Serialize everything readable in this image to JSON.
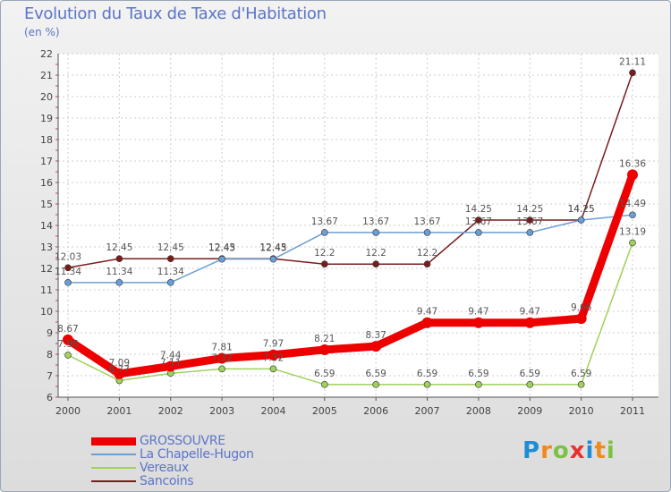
{
  "header": {
    "title": "Evolution du Taux de Taxe d'Habitation",
    "subtitle": "(en %)"
  },
  "logo": {
    "letters": [
      "P",
      "r",
      "o",
      "x",
      "i",
      "t",
      "i"
    ],
    "colors": [
      "#1f8dd6",
      "#f08a1c",
      "#7cc242",
      "#e8312f",
      "#1f8dd6",
      "#f08a1c",
      "#7cc242"
    ]
  },
  "chart_data": {
    "type": "line",
    "title": "Evolution du Taux de Taxe d'Habitation",
    "subtitle": "(en %)",
    "x": [
      "2000",
      "2001",
      "2002",
      "2003",
      "2004",
      "2005",
      "2006",
      "2007",
      "2008",
      "2009",
      "2010",
      "2011"
    ],
    "ylim": [
      6,
      22
    ],
    "yticks": [
      6,
      7,
      8,
      9,
      10,
      11,
      12,
      13,
      14,
      15,
      16,
      17,
      18,
      19,
      20,
      21,
      22
    ],
    "grid": true,
    "legend_position": "bottom-left",
    "series": [
      {
        "name": "GROSSOUVRE",
        "color": "#ee0000",
        "values": [
          8.67,
          7.09,
          7.44,
          7.81,
          7.97,
          8.21,
          8.37,
          9.47,
          9.47,
          9.47,
          9.66,
          16.36
        ],
        "labels": [
          "8.67",
          "7.09",
          "7.44",
          "7.81",
          "7.97",
          "8.21",
          "8.37",
          "9.47",
          "9.47",
          "9.47",
          "9.66",
          "16.36"
        ]
      },
      {
        "name": "La Chapelle-Hugon",
        "color": "#6a9fd6",
        "values": [
          11.34,
          11.34,
          11.34,
          12.43,
          12.43,
          13.67,
          13.67,
          13.67,
          13.67,
          13.67,
          14.25,
          14.49
        ],
        "labels": [
          "11.34",
          "11.34",
          "11.34",
          "12.43",
          "12.43",
          "13.67",
          "13.67",
          "13.67",
          "13.67",
          "13.67",
          "14.25",
          "14.49"
        ]
      },
      {
        "name": "Vereaux",
        "color": "#9fd15c",
        "values": [
          7.96,
          6.77,
          7.11,
          7.32,
          7.32,
          6.59,
          6.59,
          6.59,
          6.59,
          6.59,
          6.59,
          13.19
        ],
        "labels": [
          "7.96",
          "6.77",
          "7.11",
          "7.32",
          "7.32",
          "6.59",
          "6.59",
          "6.59",
          "6.59",
          "6.59",
          "6.59",
          "13.19"
        ]
      },
      {
        "name": "Sancoins",
        "color": "#7a1c1c",
        "values": [
          12.03,
          12.45,
          12.45,
          12.45,
          12.45,
          12.2,
          12.2,
          12.2,
          14.25,
          14.25,
          14.25,
          21.11
        ],
        "labels": [
          "12.03",
          "12.45",
          "12.45",
          "12.45",
          "12.45",
          "12.2",
          "12.2",
          "12.2",
          "14.25",
          "14.25",
          "14.25",
          "21.11"
        ]
      }
    ]
  }
}
